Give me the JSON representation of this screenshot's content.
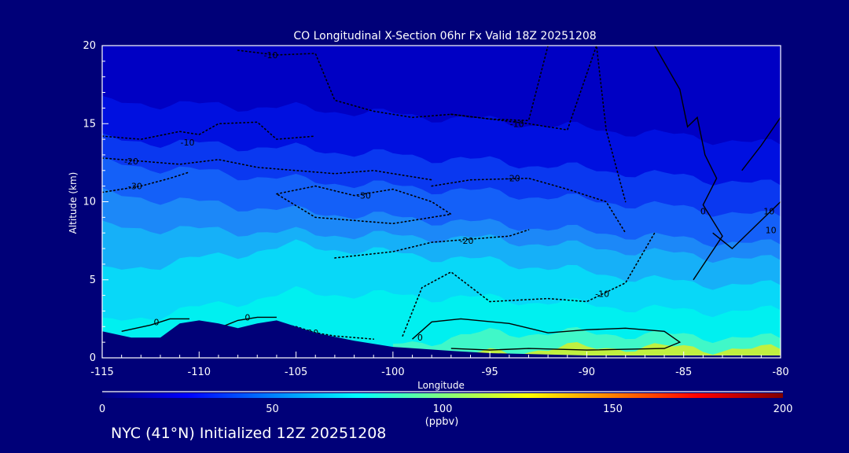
{
  "chart_data": {
    "type": "heatmap",
    "title": "CO Longitudinal X-Section 06hr  Fx Valid 18Z 20251208",
    "xlabel": "Longitude",
    "ylabel": "Altitude (km)",
    "xlim": [
      -115,
      -80
    ],
    "ylim": [
      0,
      20
    ],
    "xticks": [
      "-115",
      "-110",
      "-105",
      "-100",
      "-95",
      "-90",
      "-85",
      "-80"
    ],
    "xtick_values": [
      -115,
      -110,
      -105,
      -100,
      -95,
      -90,
      -85,
      -80
    ],
    "yticks": [
      "0",
      "5",
      "10",
      "15",
      "20"
    ],
    "ytick_values": [
      0,
      5,
      10,
      15,
      20
    ],
    "colorbar": {
      "range": [
        0,
        200
      ],
      "ticks": [
        "0",
        "50",
        "100",
        "150",
        "200"
      ],
      "tick_values": [
        0,
        50,
        100,
        150,
        200
      ],
      "units": "(ppbv)",
      "colors": [
        "#000080",
        "#0000ff",
        "#0080ff",
        "#00ffff",
        "#80ff80",
        "#ffff00",
        "#ff8000",
        "#ff0000",
        "#800000"
      ]
    },
    "bands": [
      {
        "ppbv": 20,
        "color": "#0000c4",
        "lon": [
          -115,
          -105,
          -95,
          -85,
          -80
        ],
        "top": [
          20,
          20,
          20,
          20,
          20
        ]
      },
      {
        "ppbv": 30,
        "color": "#0010e0",
        "lon": [
          -115,
          -105,
          -95,
          -85,
          -80
        ],
        "top": [
          16.4,
          16.0,
          15.2,
          14.2,
          13.6
        ]
      },
      {
        "ppbv": 40,
        "color": "#0a38f0",
        "lon": [
          -115,
          -105,
          -95,
          -85,
          -80
        ],
        "top": [
          14.0,
          13.4,
          12.6,
          11.6,
          11.0
        ]
      },
      {
        "ppbv": 50,
        "color": "#1460f8",
        "lon": [
          -115,
          -105,
          -95,
          -85,
          -80
        ],
        "top": [
          12.5,
          11.4,
          10.6,
          9.6,
          9.0
        ]
      },
      {
        "ppbv": 60,
        "color": "#1c88f8",
        "lon": [
          -115,
          -105,
          -95,
          -85,
          -80
        ],
        "top": [
          10.5,
          9.4,
          8.6,
          7.6,
          7.2
        ]
      },
      {
        "ppbv": 70,
        "color": "#16b0f8",
        "lon": [
          -115,
          -105,
          -95,
          -85,
          -80
        ],
        "top": [
          8.4,
          8.0,
          7.6,
          6.6,
          6.2
        ]
      },
      {
        "ppbv": 80,
        "color": "#08d8f8",
        "lon": [
          -115,
          -105,
          -95,
          -85,
          -80
        ],
        "top": [
          5.5,
          7.2,
          6.2,
          4.8,
          4.6
        ]
      },
      {
        "ppbv": 90,
        "color": "#00f0f0",
        "lon": [
          -115,
          -105,
          -95,
          -85,
          -80
        ],
        "top": [
          2.2,
          4.2,
          3.8,
          3.0,
          3.0
        ]
      },
      {
        "ppbv": 100,
        "color": "#40f8c8",
        "lon": [
          -100,
          -95,
          -90,
          -85,
          -80
        ],
        "top": [
          0.8,
          1.6,
          1.6,
          1.4,
          1.2
        ]
      },
      {
        "ppbv": 110,
        "color": "#c0f040",
        "lon": [
          -96,
          -92,
          -88,
          -84,
          -80
        ],
        "top": [
          0.2,
          0.6,
          0.7,
          0.6,
          0.5
        ]
      }
    ],
    "terrain": {
      "lon": [
        -115,
        -113.5,
        -112,
        -111,
        -110,
        -109,
        -108,
        -107,
        -106,
        -105,
        -104,
        -102,
        -100,
        -97,
        -95,
        -90,
        -85,
        -80
      ],
      "alt": [
        1.7,
        1.3,
        1.3,
        2.2,
        2.4,
        2.2,
        1.9,
        2.2,
        2.4,
        2.0,
        1.6,
        1.1,
        0.7,
        0.45,
        0.3,
        0.15,
        0.15,
        0.15
      ]
    },
    "contours": [
      {
        "label": "-10",
        "style": "dotted",
        "label_at": [
          -106.3,
          19.4
        ],
        "lon": [
          -108,
          -106,
          -104,
          -103,
          -101,
          -99,
          -97,
          -95,
          -93,
          -92
        ],
        "alt": [
          19.7,
          19.4,
          19.5,
          16.5,
          15.8,
          15.4,
          15.6,
          15.3,
          15.2,
          20
        ]
      },
      {
        "label": "-10",
        "style": "dotted",
        "label_at": [
          -110.6,
          13.8
        ],
        "lon": [
          -115,
          -113,
          -111,
          -110,
          -109,
          -107,
          -106,
          -104
        ],
        "alt": [
          14.2,
          14.0,
          14.5,
          14.3,
          15.0,
          15.1,
          14.0,
          14.2
        ]
      },
      {
        "label": "-10",
        "style": "dotted",
        "label_at": [
          -93.6,
          15.0
        ],
        "lon": [
          -97,
          -95,
          -93,
          -91,
          -89.5,
          -89,
          -88
        ],
        "alt": [
          15.6,
          15.3,
          15.0,
          14.6,
          20,
          14.6,
          10.0
        ]
      },
      {
        "label": "-20",
        "style": "dotted",
        "label_at": [
          -113.5,
          12.6
        ],
        "lon": [
          -115,
          -113,
          -111,
          -109,
          -107,
          -105,
          -103,
          -101,
          -98
        ],
        "alt": [
          12.8,
          12.6,
          12.4,
          12.7,
          12.2,
          12.0,
          11.8,
          12.0,
          11.4
        ]
      },
      {
        "label": "-30",
        "style": "dotted",
        "label_at": [
          -113.3,
          11.0
        ],
        "lon": [
          -115,
          -113,
          -111.5,
          -110.5
        ],
        "alt": [
          10.6,
          11.0,
          11.5,
          11.9
        ]
      },
      {
        "label": "-30",
        "style": "dotted",
        "label_at": [
          -101.5,
          10.4
        ],
        "lon": [
          -106,
          -104,
          -102,
          -100,
          -98,
          -97,
          -100,
          -104,
          -106
        ],
        "alt": [
          10.5,
          11.0,
          10.4,
          10.8,
          10.0,
          9.2,
          8.6,
          9.0,
          10.5
        ]
      },
      {
        "label": "-20",
        "style": "dotted",
        "label_at": [
          -93.8,
          11.5
        ],
        "lon": [
          -98,
          -96,
          -93,
          -91,
          -89,
          -88
        ],
        "alt": [
          11.0,
          11.4,
          11.5,
          10.8,
          10.0,
          8.0
        ]
      },
      {
        "label": "-20",
        "style": "dotted",
        "label_at": [
          -96.2,
          7.5
        ],
        "lon": [
          -103,
          -100,
          -98,
          -96,
          -94,
          -93
        ],
        "alt": [
          6.4,
          6.8,
          7.4,
          7.6,
          7.8,
          8.2
        ]
      },
      {
        "label": "-10",
        "style": "dotted",
        "label_at": [
          -89.2,
          4.1
        ],
        "lon": [
          -99.5,
          -98.5,
          -97,
          -95,
          -92,
          -90,
          -88,
          -86.5
        ],
        "alt": [
          1.4,
          4.5,
          5.5,
          3.6,
          3.8,
          3.6,
          4.8,
          8.0
        ]
      },
      {
        "label": "-10",
        "style": "dotted",
        "label_at": [
          -104.2,
          1.6
        ],
        "lon": [
          -106,
          -105,
          -104,
          -103,
          -101
        ],
        "alt": [
          2.2,
          2.0,
          1.6,
          1.4,
          1.2
        ]
      },
      {
        "label": "0",
        "style": "solid",
        "label_at": [
          -112.2,
          2.3
        ],
        "lon": [
          -114,
          -112.5,
          -111.5,
          -110.5
        ],
        "alt": [
          1.7,
          2.1,
          2.5,
          2.5
        ]
      },
      {
        "label": "0",
        "style": "solid",
        "label_at": [
          -107.5,
          2.6
        ],
        "lon": [
          -108.8,
          -108,
          -107,
          -106
        ],
        "alt": [
          2.0,
          2.4,
          2.6,
          2.6
        ]
      },
      {
        "label": "0",
        "style": "solid",
        "label_at": [
          -84.0,
          9.4
        ],
        "lon": [
          -86.5,
          -85.2,
          -84.8,
          -84.3,
          -83.9,
          -83.3,
          -84.0,
          -83.0,
          -84.5
        ],
        "alt": [
          20,
          17.2,
          14.8,
          15.4,
          13.0,
          11.5,
          9.8,
          7.8,
          5.0
        ]
      },
      {
        "label": "0",
        "style": "solid",
        "label_at": [
          -98.6,
          1.3
        ],
        "lon": [
          -99,
          -98,
          -96.5,
          -94,
          -92,
          -90,
          -88,
          -86,
          -85.2,
          -86,
          -90,
          -93,
          -95,
          -97
        ],
        "alt": [
          1.2,
          2.3,
          2.5,
          2.2,
          1.6,
          1.8,
          1.9,
          1.7,
          1.0,
          0.6,
          0.5,
          0.6,
          0.5,
          0.6
        ]
      },
      {
        "label": "10",
        "style": "solid",
        "label_at": [
          -80.6,
          9.4
        ],
        "lon": [
          -82,
          -81,
          -80
        ],
        "alt": [
          12.0,
          13.6,
          15.4
        ]
      },
      {
        "label": "10",
        "style": "solid",
        "label_at": [
          -80.5,
          9.6
        ],
        "lon": [
          -83.5,
          -82.5,
          -81,
          -80
        ],
        "alt": [
          8.0,
          7.0,
          8.8,
          10.0
        ]
      }
    ]
  },
  "footer": "NYC (41°N) Initialized 12Z 20251208"
}
